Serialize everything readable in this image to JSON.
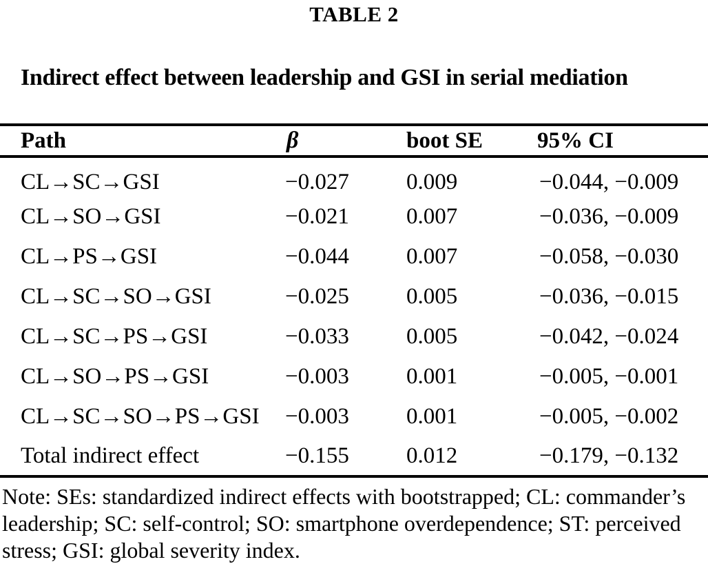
{
  "page": {
    "table_label": "TABLE 2",
    "title": "Indirect effect between leadership and GSI in serial mediation"
  },
  "table": {
    "columns": [
      "Path",
      "β",
      "boot SE",
      "95% CI"
    ],
    "rows": [
      {
        "path": "CL→SC→GSI",
        "beta": "−0.027",
        "boot_se": "0.009",
        "ci": "−0.044, −0.009"
      },
      {
        "path": "CL→SO→GSI",
        "beta": "−0.021",
        "boot_se": "0.007",
        "ci": "−0.036, −0.009"
      },
      {
        "path": "CL→PS→GSI",
        "beta": "−0.044",
        "boot_se": "0.007",
        "ci": "−0.058, −0.030"
      },
      {
        "path": "CL→SC→SO→GSI",
        "beta": "−0.025",
        "boot_se": "0.005",
        "ci": "−0.036, −0.015"
      },
      {
        "path": "CL→SC→PS→GSI",
        "beta": "−0.033",
        "boot_se": "0.005",
        "ci": "−0.042, −0.024"
      },
      {
        "path": "CL→SO→PS→GSI",
        "beta": "−0.003",
        "boot_se": "0.001",
        "ci": "−0.005, −0.001"
      },
      {
        "path": "CL→SC→SO→PS→GSI",
        "beta": "−0.003",
        "boot_se": "0.001",
        "ci": "−0.005, −0.002"
      },
      {
        "path": "Total indirect effect",
        "beta": "−0.155",
        "boot_se": "0.012",
        "ci": "−0.179, −0.132"
      }
    ]
  },
  "note": {
    "lines": [
      "Note: SEs: standardized indirect effects with bootstrapped; CL: commander’s",
      "leadership; SC: self-control; SO: smartphone overdependence; ST: perceived",
      "stress; GSI: global severity index."
    ]
  },
  "colors": {
    "text": "#000000",
    "background": "#ffffff",
    "rule": "#000000"
  }
}
